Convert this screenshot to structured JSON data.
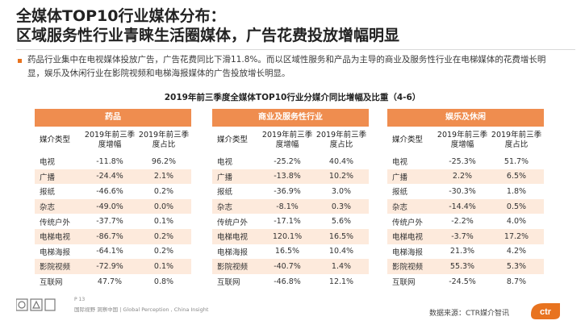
{
  "title": {
    "line1": "全媒体TOP10行业媒体分布：",
    "line2": "区域服务性行业青睐生活圈媒体，广告花费投放增幅明显"
  },
  "description": "药品行业集中在电视媒体投放广告，广告花费同比下滑11.8%。而以区域性服务和产品为主导的商业及服务性行业在电梯媒体的花费增长明显，娱乐及休闲行业在影院视频和电梯海报媒体的广告投放增长明显。",
  "subtitle": "2019年前三季度全媒体TOP10行业分媒介同比增幅及比重（4-6）",
  "columns": {
    "media": "媒介类型",
    "growth": "2019年前三季度增幅",
    "share": "2019年前三季度占比"
  },
  "tables": [
    {
      "name": "药品",
      "rows": [
        [
          "电视",
          "-11.8%",
          "96.2%"
        ],
        [
          "广播",
          "-24.4%",
          "2.1%"
        ],
        [
          "报纸",
          "-46.6%",
          "0.2%"
        ],
        [
          "杂志",
          "-49.0%",
          "0.0%"
        ],
        [
          "传统户外",
          "-37.7%",
          "0.1%"
        ],
        [
          "电梯电视",
          "-86.7%",
          "0.2%"
        ],
        [
          "电梯海报",
          "-64.1%",
          "0.2%"
        ],
        [
          "影院视频",
          "-72.9%",
          "0.1%"
        ],
        [
          "互联网",
          "47.7%",
          "0.8%"
        ]
      ]
    },
    {
      "name": "商业及服务性行业",
      "rows": [
        [
          "电视",
          "-25.2%",
          "40.4%"
        ],
        [
          "广播",
          "-13.8%",
          "10.2%"
        ],
        [
          "报纸",
          "-36.9%",
          "3.0%"
        ],
        [
          "杂志",
          "-8.1%",
          "0.3%"
        ],
        [
          "传统户外",
          "-17.1%",
          "5.6%"
        ],
        [
          "电梯电视",
          "120.1%",
          "16.5%"
        ],
        [
          "电梯海报",
          "16.5%",
          "10.4%"
        ],
        [
          "影院视频",
          "-40.7%",
          "1.4%"
        ],
        [
          "互联网",
          "-46.8%",
          "12.1%"
        ]
      ]
    },
    {
      "name": "娱乐及休闲",
      "rows": [
        [
          "电视",
          "-25.3%",
          "51.7%"
        ],
        [
          "广播",
          "2.2%",
          "6.5%"
        ],
        [
          "报纸",
          "-30.3%",
          "1.8%"
        ],
        [
          "杂志",
          "-14.4%",
          "0.5%"
        ],
        [
          "传统户外",
          "-2.2%",
          "4.0%"
        ],
        [
          "电梯电视",
          "-3.7%",
          "17.2%"
        ],
        [
          "电梯海报",
          "21.3%",
          "4.2%"
        ],
        [
          "影院视频",
          "55.3%",
          "5.3%"
        ],
        [
          "互联网",
          "-24.5%",
          "8.7%"
        ]
      ]
    }
  ],
  "footer": {
    "page": "P 13",
    "tagline": "国际视野 洞察中国 | Global Perception , China Insight",
    "source": "数据来源：CTR媒介智讯",
    "logo_text": "ctr"
  },
  "colors": {
    "accent": "#ef8d4f",
    "alt_row": "#fdeadc"
  }
}
